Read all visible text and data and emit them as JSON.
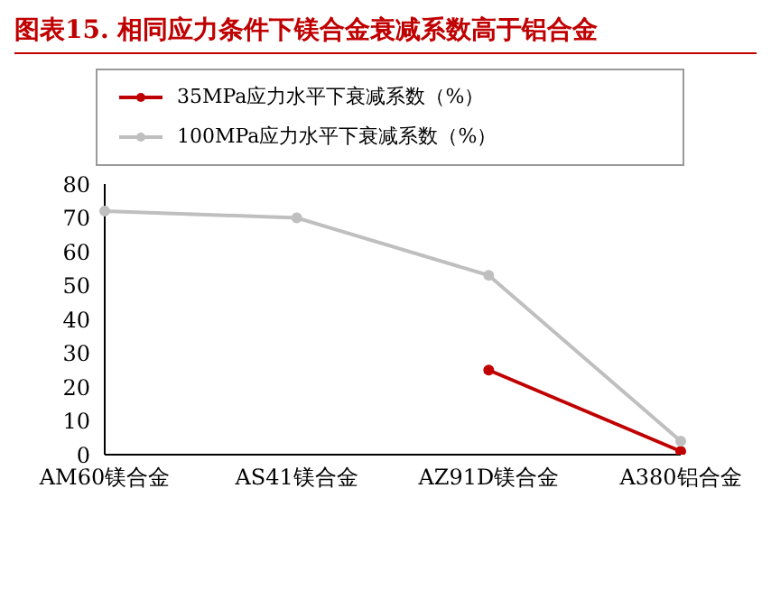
{
  "chart_data": {
    "type": "line",
    "title": "图表15.  相同应力条件下镁合金衰减系数高于铝合金",
    "categories": [
      "AM60镁合金",
      "AS41镁合金",
      "AZ91D镁合金",
      "A380铝合金"
    ],
    "series": [
      {
        "name": "35MPa应力水平下衰减系数（%）",
        "color": "#c00000",
        "values": [
          null,
          null,
          25,
          1
        ]
      },
      {
        "name": "100MPa应力水平下衰减系数（%）",
        "color": "#bfbfbf",
        "values": [
          72,
          70,
          53,
          4
        ]
      }
    ],
    "ylim": [
      0,
      80
    ],
    "yticks": [
      0,
      10,
      20,
      30,
      40,
      50,
      60,
      70,
      80
    ],
    "grid": false,
    "legend": "top left",
    "marker": "circle",
    "line_style": "solid"
  }
}
